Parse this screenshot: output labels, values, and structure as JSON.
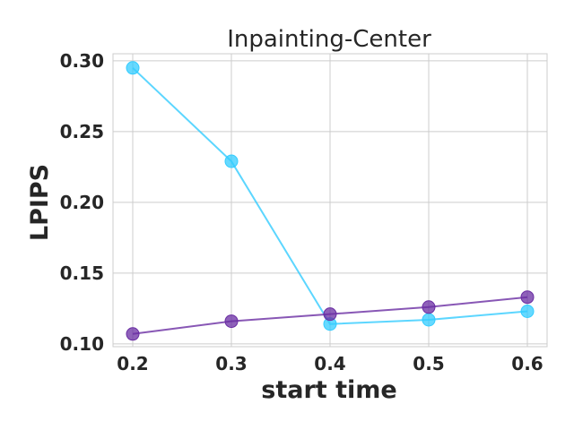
{
  "chart_data": {
    "type": "line",
    "title": "Inpainting-Center",
    "xlabel": "start time",
    "ylabel": "LPIPS",
    "x": [
      0.2,
      0.3,
      0.4,
      0.5,
      0.6
    ],
    "x_ticks": [
      "0.2",
      "0.3",
      "0.4",
      "0.5",
      "0.6"
    ],
    "y_ticks": [
      "0.10",
      "0.15",
      "0.20",
      "0.25",
      "0.30"
    ],
    "xlim": [
      0.18,
      0.62
    ],
    "ylim": [
      0.098,
      0.305
    ],
    "grid": true,
    "series": [
      {
        "color": "#33ccff",
        "values": [
          0.295,
          0.229,
          0.114,
          0.117,
          0.123
        ]
      },
      {
        "color": "#6a2da3",
        "values": [
          0.107,
          0.116,
          0.121,
          0.126,
          0.133
        ]
      }
    ]
  }
}
